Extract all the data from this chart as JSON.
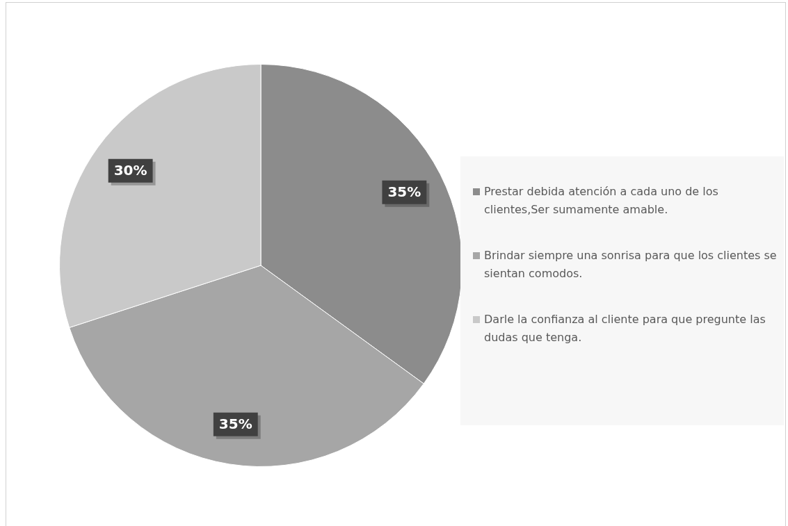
{
  "chart_data": {
    "type": "pie",
    "categories": [
      "Prestar debida atención a cada uno de los clientes,Ser sumamente amable.",
      "Brindar siempre una sonrisa para que los clientes se sientan comodos.",
      "Darle la confianza al cliente para que pregunte las dudas que tenga."
    ],
    "values": [
      35,
      35,
      30
    ],
    "colors": [
      "#8c8c8c",
      "#a6a6a6",
      "#c9c9c9"
    ],
    "value_labels": [
      "35%",
      "35%",
      "30%"
    ],
    "legend": "right"
  }
}
